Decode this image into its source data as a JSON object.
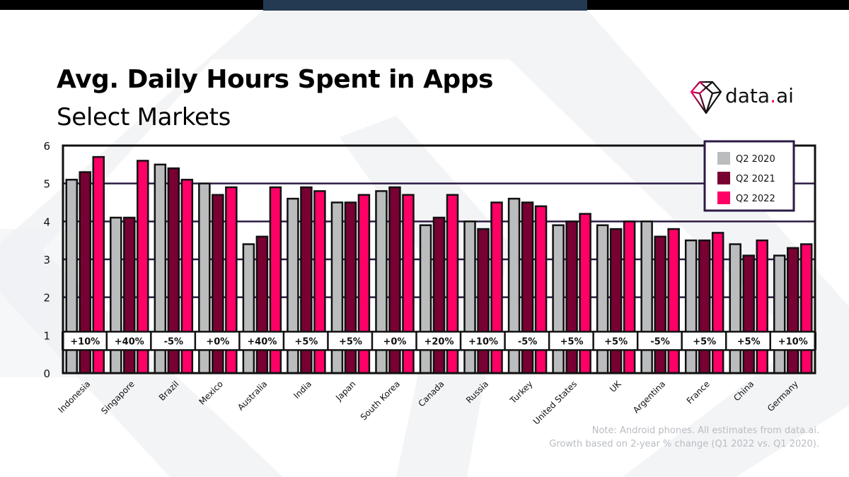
{
  "header": {
    "title": "Avg. Daily Hours Spent in Apps",
    "subtitle": "Select Markets"
  },
  "brand": {
    "logo_text_main": "data",
    "logo_text_dot": ".",
    "logo_text_tail": "ai",
    "logo_icon": "diamond-icon",
    "accent": "#ff0066"
  },
  "footnote": {
    "line1": "Note: Android phones. All estimates from data.ai.",
    "line2": "Growth based on 2-year % change (Q1 2022 vs. Q1 2020)."
  },
  "chart_data": {
    "type": "bar",
    "title": "Avg. Daily Hours Spent in Apps",
    "subtitle": "Select Markets",
    "xlabel": "",
    "ylabel": "",
    "ylim": [
      0,
      6
    ],
    "yticks": [
      0,
      1,
      2,
      3,
      4,
      5,
      6
    ],
    "grid": true,
    "legend_position": "top-right",
    "categories": [
      "Indonesia",
      "Singapore",
      "Brazil",
      "Mexico",
      "Australia",
      "India",
      "Japan",
      "South Korea",
      "Canada",
      "Russia",
      "Turkey",
      "United States",
      "UK",
      "Argentina",
      "France",
      "China",
      "Germany"
    ],
    "series": [
      {
        "name": "Q2 2020",
        "color": "#bbbcbe",
        "values": [
          5.1,
          4.1,
          5.5,
          5.0,
          3.4,
          4.6,
          4.5,
          4.8,
          3.9,
          4.0,
          4.6,
          3.9,
          3.9,
          4.0,
          3.5,
          3.4,
          3.1
        ]
      },
      {
        "name": "Q2 2021",
        "color": "#780033",
        "values": [
          5.3,
          4.1,
          5.4,
          4.7,
          3.6,
          4.9,
          4.5,
          4.9,
          4.1,
          3.8,
          4.5,
          4.0,
          3.8,
          3.6,
          3.5,
          3.1,
          3.3
        ]
      },
      {
        "name": "Q2 2022",
        "color": "#ff0066",
        "values": [
          5.7,
          5.6,
          5.1,
          4.9,
          4.9,
          4.8,
          4.7,
          4.7,
          4.7,
          4.5,
          4.4,
          4.2,
          4.0,
          3.8,
          3.7,
          3.5,
          3.4
        ]
      }
    ],
    "annotations": [
      "+10%",
      "+40%",
      "-5%",
      "+0%",
      "+40%",
      "+5%",
      "+5%",
      "+0%",
      "+20%",
      "+10%",
      "-5%",
      "+5%",
      "+5%",
      "-5%",
      "+5%",
      "+5%",
      "+10%"
    ],
    "annotation_y": 0.85
  }
}
